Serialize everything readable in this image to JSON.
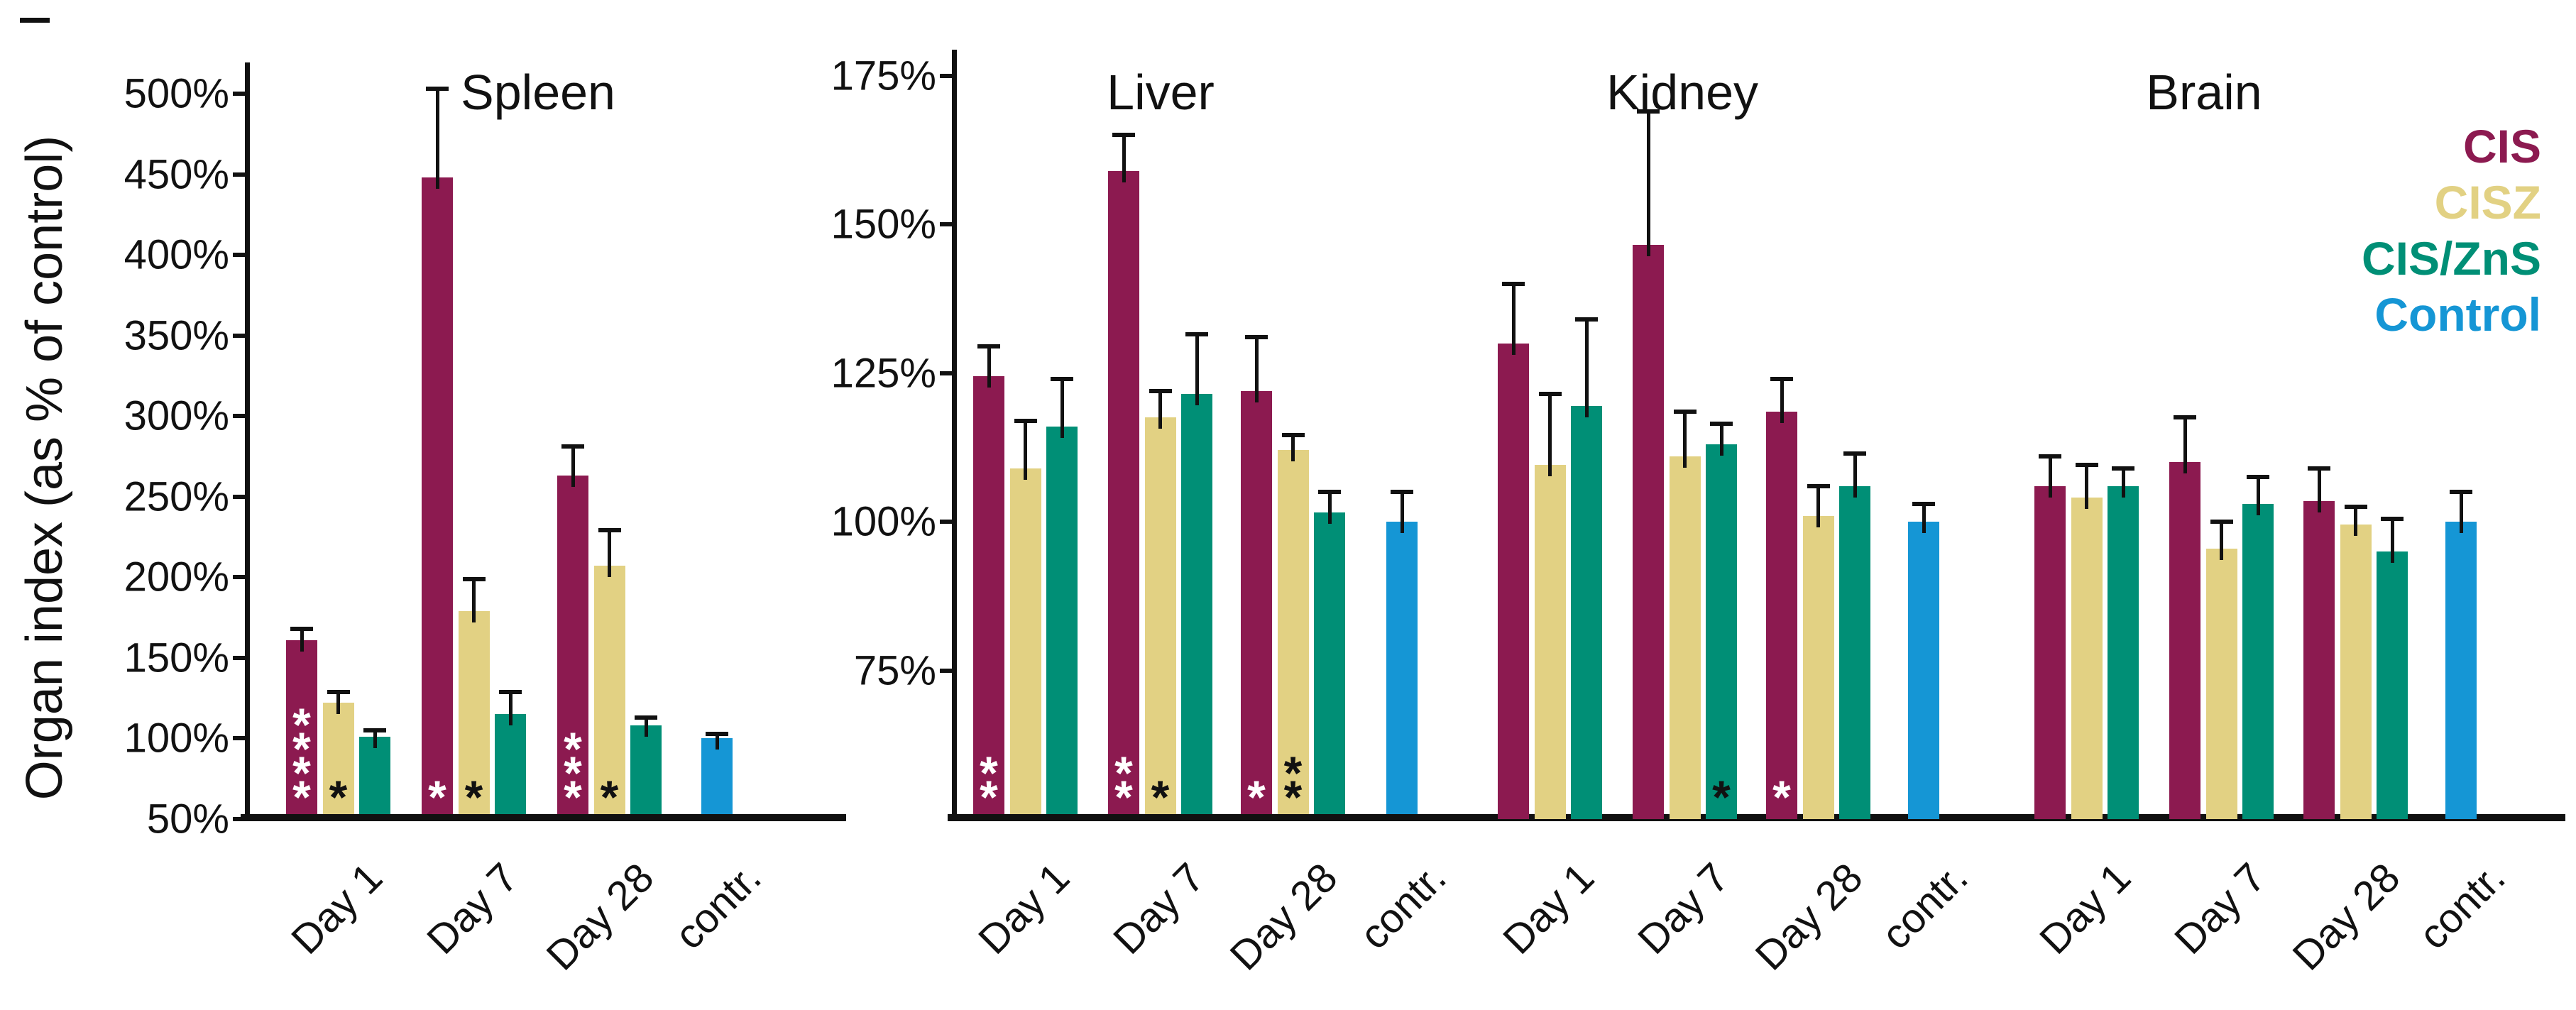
{
  "figure": {
    "ylabel": "Organ index (as % of control)"
  },
  "legend": {
    "items": [
      {
        "label": "CIS",
        "color": "#8C1A50"
      },
      {
        "label": "CISZ",
        "color": "#E2D183"
      },
      {
        "label": "CIS/ZnS",
        "color": "#008F76"
      },
      {
        "label": "Control",
        "color": "#1596D5"
      }
    ]
  },
  "chart_data": [
    {
      "type": "bar",
      "title": "Spleen",
      "ylabel": "Organ index (as % of control)",
      "ylim": [
        50,
        500
      ],
      "grid": false,
      "yticks": [
        {
          "value": 500,
          "label": "500%"
        },
        {
          "value": 450,
          "label": "450%"
        },
        {
          "value": 400,
          "label": "400%"
        },
        {
          "value": 350,
          "label": "350%"
        },
        {
          "value": 300,
          "label": "300%"
        },
        {
          "value": 250,
          "label": "250%"
        },
        {
          "value": 200,
          "label": "200%"
        },
        {
          "value": 150,
          "label": "150%"
        },
        {
          "value": 100,
          "label": "100%"
        },
        {
          "value": 50,
          "label": "50%"
        }
      ],
      "groups": [
        {
          "label": "Day 1",
          "bars": [
            {
              "series": "CIS",
              "value": 161,
              "err": 7,
              "sig": "****",
              "sig_color": "#ffffff"
            },
            {
              "series": "CISZ",
              "value": 122,
              "err": 7,
              "sig": "*",
              "sig_color": "#111111"
            },
            {
              "series": "CIS/ZnS",
              "value": 101,
              "err": 4
            }
          ]
        },
        {
          "label": "Day 7",
          "bars": [
            {
              "series": "CIS",
              "value": 448,
              "err": 55,
              "sig": "*",
              "sig_color": "#ffffff"
            },
            {
              "series": "CISZ",
              "value": 179,
              "err": 20,
              "sig": "*",
              "sig_color": "#111111"
            },
            {
              "series": "CIS/ZnS",
              "value": 115,
              "err": 14
            }
          ]
        },
        {
          "label": "Day 28",
          "bars": [
            {
              "series": "CIS",
              "value": 263,
              "err": 18,
              "sig": "***",
              "sig_color": "#ffffff"
            },
            {
              "series": "CISZ",
              "value": 207,
              "err": 22,
              "sig": "*",
              "sig_color": "#111111"
            },
            {
              "series": "CIS/ZnS",
              "value": 108,
              "err": 5
            }
          ]
        },
        {
          "label": "contr.",
          "bars": [
            {
              "series": "Control",
              "value": 100,
              "err": 3
            }
          ]
        }
      ]
    },
    {
      "type": "bar",
      "title": "Liver",
      "ylim": [
        50,
        175
      ],
      "grid": false,
      "yticks": [
        {
          "value": 175,
          "label": "175%"
        },
        {
          "value": 150,
          "label": "150%"
        },
        {
          "value": 125,
          "label": "125%"
        },
        {
          "value": 100,
          "label": "100%"
        },
        {
          "value": 75,
          "label": "75%"
        }
      ],
      "groups": [
        {
          "label": "Day 1",
          "bars": [
            {
              "series": "CIS",
              "value": 124.5,
              "err": 5,
              "sig": "**",
              "sig_color": "#ffffff"
            },
            {
              "series": "CISZ",
              "value": 109,
              "err": 8
            },
            {
              "series": "CIS/ZnS",
              "value": 116,
              "err": 8
            }
          ]
        },
        {
          "label": "Day 7",
          "bars": [
            {
              "series": "CIS",
              "value": 159,
              "err": 6,
              "sig": "**",
              "sig_color": "#ffffff"
            },
            {
              "series": "CISZ",
              "value": 117.5,
              "err": 4.5,
              "sig": "*",
              "sig_color": "#111111"
            },
            {
              "series": "CIS/ZnS",
              "value": 121.5,
              "err": 10
            }
          ]
        },
        {
          "label": "Day 28",
          "bars": [
            {
              "series": "CIS",
              "value": 122,
              "err": 9,
              "sig": "*",
              "sig_color": "#ffffff"
            },
            {
              "series": "CISZ",
              "value": 112,
              "err": 2.5,
              "sig": "**",
              "sig_color": "#111111"
            },
            {
              "series": "CIS/ZnS",
              "value": 101.5,
              "err": 3.5
            }
          ]
        },
        {
          "label": "contr.",
          "bars": [
            {
              "series": "Control",
              "value": 100,
              "err": 5
            }
          ]
        }
      ]
    },
    {
      "type": "bar",
      "title": "Kidney",
      "ylim": [
        50,
        175
      ],
      "grid": false,
      "groups": [
        {
          "label": "Day 1",
          "bars": [
            {
              "series": "CIS",
              "value": 130,
              "err": 10
            },
            {
              "series": "CISZ",
              "value": 109.5,
              "err": 12
            },
            {
              "series": "CIS/ZnS",
              "value": 119.5,
              "err": 14.5
            }
          ]
        },
        {
          "label": "Day 7",
          "bars": [
            {
              "series": "CIS",
              "value": 146.5,
              "err": 22.5
            },
            {
              "series": "CISZ",
              "value": 111,
              "err": 7.5
            },
            {
              "series": "CIS/ZnS",
              "value": 113,
              "err": 3.5,
              "sig": "*",
              "sig_color": "#111111"
            }
          ]
        },
        {
          "label": "Day 28",
          "bars": [
            {
              "series": "CIS",
              "value": 118.5,
              "err": 5.5,
              "sig": "*",
              "sig_color": "#ffffff"
            },
            {
              "series": "CISZ",
              "value": 101,
              "err": 5
            },
            {
              "series": "CIS/ZnS",
              "value": 106,
              "err": 5.5
            }
          ]
        },
        {
          "label": "contr.",
          "bars": [
            {
              "series": "Control",
              "value": 100,
              "err": 3
            }
          ]
        }
      ]
    },
    {
      "type": "bar",
      "title": "Brain",
      "ylim": [
        50,
        175
      ],
      "grid": false,
      "groups": [
        {
          "label": "Day 1",
          "bars": [
            {
              "series": "CIS",
              "value": 106,
              "err": 5
            },
            {
              "series": "CISZ",
              "value": 104,
              "err": 5.5
            },
            {
              "series": "CIS/ZnS",
              "value": 106,
              "err": 3
            }
          ]
        },
        {
          "label": "Day 7",
          "bars": [
            {
              "series": "CIS",
              "value": 110,
              "err": 7.5
            },
            {
              "series": "CISZ",
              "value": 95.5,
              "err": 4.5
            },
            {
              "series": "CIS/ZnS",
              "value": 103,
              "err": 4.5
            }
          ]
        },
        {
          "label": "Day 28",
          "bars": [
            {
              "series": "CIS",
              "value": 103.5,
              "err": 5.5
            },
            {
              "series": "CISZ",
              "value": 99.5,
              "err": 3
            },
            {
              "series": "CIS/ZnS",
              "value": 95,
              "err": 5.5
            }
          ]
        },
        {
          "label": "contr.",
          "bars": [
            {
              "series": "Control",
              "value": 100,
              "err": 5
            }
          ]
        }
      ]
    }
  ]
}
